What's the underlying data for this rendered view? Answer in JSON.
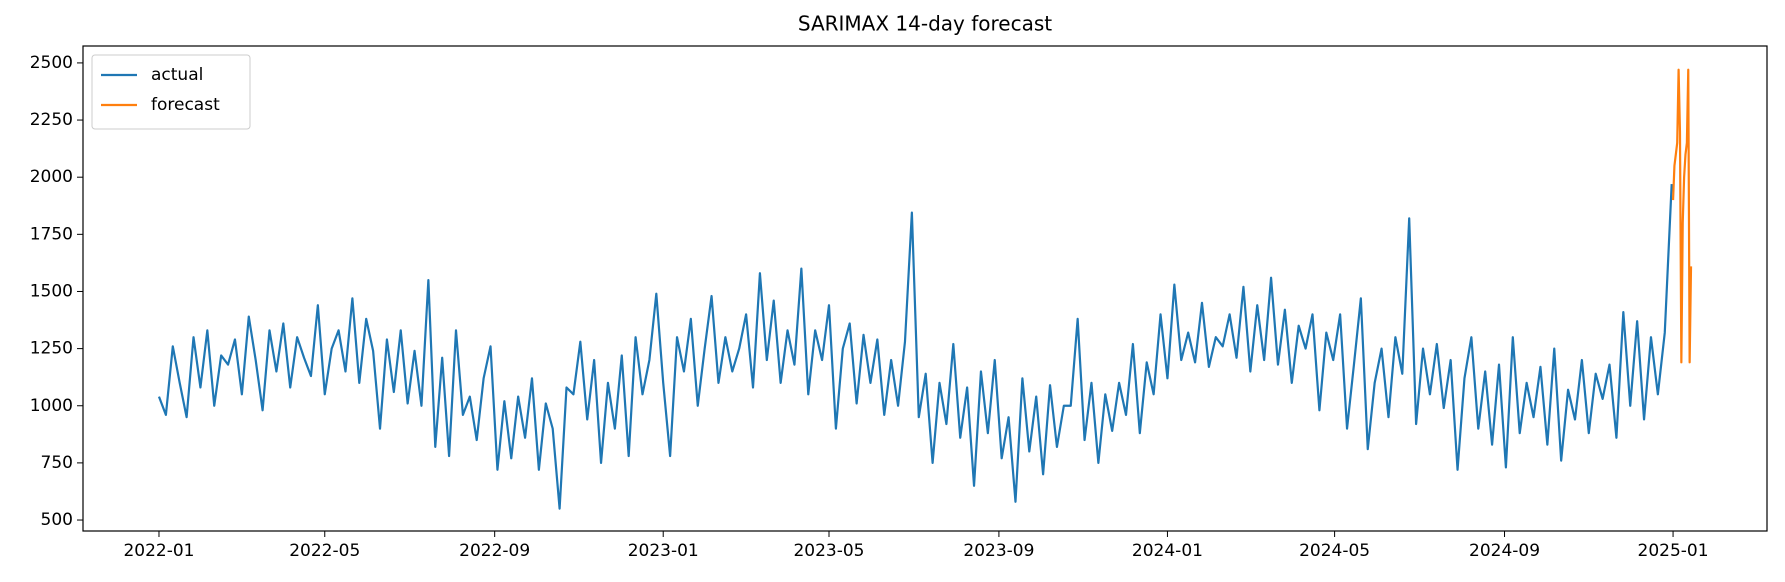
{
  "chart_data": {
    "type": "line",
    "title": "SARIMAX 14-day forecast",
    "xlim": [
      -55,
      1164
    ],
    "xticks": [
      {
        "value": 0,
        "label": "2022-01"
      },
      {
        "value": 120,
        "label": "2022-05"
      },
      {
        "value": 243,
        "label": "2022-09"
      },
      {
        "value": 365,
        "label": "2023-01"
      },
      {
        "value": 485,
        "label": "2023-05"
      },
      {
        "value": 608,
        "label": "2023-09"
      },
      {
        "value": 730,
        "label": "2024-01"
      },
      {
        "value": 851,
        "label": "2024-05"
      },
      {
        "value": 974,
        "label": "2024-09"
      },
      {
        "value": 1096,
        "label": "2025-01"
      }
    ],
    "ylim": [
      452,
      2574
    ],
    "yticks": [
      500,
      750,
      1000,
      1250,
      1500,
      1750,
      2000,
      2250,
      2500
    ],
    "legend": "upper left",
    "series": [
      {
        "name": "actual",
        "color": "#1f77b4",
        "x": [
          0,
          5,
          10,
          15,
          20,
          25,
          30,
          35,
          40,
          45,
          50,
          55,
          60,
          65,
          70,
          75,
          80,
          85,
          90,
          95,
          100,
          105,
          110,
          115,
          120,
          125,
          130,
          135,
          140,
          145,
          150,
          155,
          160,
          165,
          170,
          175,
          180,
          185,
          190,
          195,
          200,
          205,
          210,
          215,
          220,
          225,
          230,
          235,
          240,
          245,
          250,
          255,
          260,
          265,
          270,
          275,
          280,
          285,
          290,
          295,
          300,
          305,
          310,
          315,
          320,
          325,
          330,
          335,
          340,
          345,
          350,
          355,
          360,
          365,
          370,
          375,
          380,
          385,
          390,
          395,
          400,
          405,
          410,
          415,
          420,
          425,
          430,
          435,
          440,
          445,
          450,
          455,
          460,
          465,
          470,
          475,
          480,
          485,
          490,
          495,
          500,
          505,
          510,
          515,
          520,
          525,
          530,
          535,
          540,
          545,
          550,
          555,
          560,
          565,
          570,
          575,
          580,
          585,
          590,
          595,
          600,
          605,
          610,
          615,
          620,
          625,
          630,
          635,
          640,
          645,
          650,
          655,
          660,
          665,
          670,
          675,
          680,
          685,
          690,
          695,
          700,
          705,
          710,
          715,
          720,
          725,
          730,
          735,
          740,
          745,
          750,
          755,
          760,
          765,
          770,
          775,
          780,
          785,
          790,
          795,
          800,
          805,
          810,
          815,
          820,
          825,
          830,
          835,
          840,
          845,
          850,
          855,
          860,
          865,
          870,
          875,
          880,
          885,
          890,
          895,
          900,
          905,
          910,
          915,
          920,
          925,
          930,
          935,
          940,
          945,
          950,
          955,
          960,
          965,
          970,
          975,
          980,
          985,
          990,
          995,
          1000,
          1005,
          1010,
          1015,
          1020,
          1025,
          1030,
          1035,
          1040,
          1045,
          1050,
          1055,
          1060,
          1065,
          1070,
          1075,
          1080,
          1085,
          1090,
          1095
        ],
        "values": [
          1040,
          960,
          1260,
          1100,
          950,
          1300,
          1080,
          1330,
          1000,
          1220,
          1180,
          1290,
          1050,
          1390,
          1200,
          980,
          1330,
          1150,
          1360,
          1080,
          1300,
          1210,
          1130,
          1440,
          1050,
          1250,
          1330,
          1150,
          1470,
          1100,
          1380,
          1240,
          900,
          1290,
          1060,
          1330,
          1010,
          1240,
          1000,
          1550,
          820,
          1210,
          780,
          1330,
          960,
          1040,
          850,
          1120,
          1260,
          720,
          1020,
          770,
          1040,
          860,
          1120,
          720,
          1010,
          900,
          550,
          1080,
          1050,
          1280,
          940,
          1200,
          750,
          1100,
          900,
          1220,
          780,
          1300,
          1050,
          1200,
          1490,
          1100,
          780,
          1300,
          1150,
          1380,
          1000,
          1250,
          1480,
          1100,
          1300,
          1150,
          1250,
          1400,
          1080,
          1580,
          1200,
          1460,
          1100,
          1330,
          1180,
          1600,
          1050,
          1330,
          1200,
          1440,
          900,
          1250,
          1360,
          1010,
          1310,
          1100,
          1290,
          960,
          1200,
          1000,
          1280,
          1845,
          950,
          1140,
          750,
          1100,
          920,
          1270,
          860,
          1080,
          650,
          1150,
          880,
          1200,
          770,
          950,
          580,
          1120,
          800,
          1040,
          700,
          1090,
          820,
          1000,
          1000,
          1380,
          850,
          1100,
          750,
          1050,
          890,
          1100,
          960,
          1270,
          880,
          1190,
          1050,
          1400,
          1120,
          1530,
          1200,
          1320,
          1190,
          1450,
          1170,
          1300,
          1260,
          1400,
          1210,
          1520,
          1150,
          1440,
          1200,
          1560,
          1180,
          1420,
          1100,
          1350,
          1250,
          1400,
          980,
          1320,
          1200,
          1400,
          900,
          1180,
          1470,
          810,
          1100,
          1250,
          950,
          1300,
          1140,
          1820,
          920,
          1250,
          1050,
          1270,
          990,
          1200,
          720,
          1120,
          1300,
          900,
          1150,
          830,
          1180,
          730,
          1300,
          880,
          1100,
          950,
          1170,
          830,
          1250,
          760,
          1070,
          940,
          1200,
          880,
          1140,
          1030,
          1180,
          860,
          1410,
          1000,
          1370,
          940,
          1300,
          1050,
          1320,
          1970
        ]
      },
      {
        "name": "forecast",
        "color": "#ff7f0e",
        "x": [
          1096,
          1097,
          1098,
          1099,
          1100,
          1101,
          1102,
          1103,
          1104,
          1105,
          1106,
          1107,
          1108,
          1109
        ],
        "values": [
          1900,
          2050,
          2100,
          2150,
          2470,
          2200,
          1190,
          1800,
          2000,
          2100,
          2150,
          2470,
          1190,
          1610
        ]
      }
    ]
  }
}
